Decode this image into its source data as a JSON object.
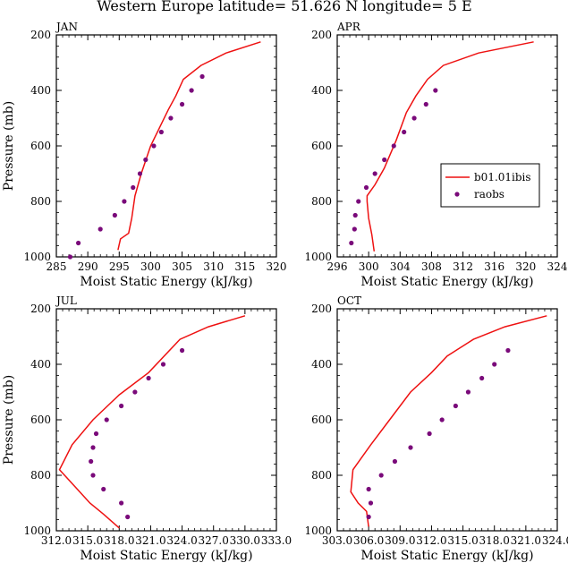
{
  "figure_title": "Western Europe  latitude= 51.626 N longitude= 5 E",
  "colors": {
    "model": "#ee1111",
    "obs": "#7a0a7a",
    "axis": "#000000"
  },
  "legend": {
    "model_label": "b01.01ibis",
    "obs_label": "raobs"
  },
  "chart_data": [
    {
      "type": "line",
      "panel": "JAN",
      "xlabel": "Moist Static Energy (kJ/kg)",
      "ylabel": "Pressure (mb)",
      "xlim": [
        285,
        320
      ],
      "xticks": [
        "285",
        "290",
        "295",
        "300",
        "305",
        "310",
        "315",
        "320"
      ],
      "ylim": [
        1000,
        200
      ],
      "yticks": [
        "200",
        "400",
        "600",
        "800",
        "1000"
      ],
      "series": [
        {
          "name": "b01.01ibis",
          "kind": "line",
          "points": [
            [
              294.8,
              975
            ],
            [
              295.0,
              955
            ],
            [
              295.2,
              935
            ],
            [
              296.5,
              915
            ],
            [
              297.0,
              860
            ],
            [
              297.5,
              780
            ],
            [
              298.5,
              700
            ],
            [
              300.0,
              600
            ],
            [
              301.5,
              530
            ],
            [
              302.8,
              470
            ],
            [
              304.0,
              420
            ],
            [
              305.2,
              360
            ],
            [
              308.0,
              310
            ],
            [
              312.0,
              265
            ],
            [
              317.5,
              225
            ]
          ]
        },
        {
          "name": "raobs",
          "kind": "scatter",
          "points": [
            [
              287.2,
              1000
            ],
            [
              288.5,
              950
            ],
            [
              292.0,
              900
            ],
            [
              294.3,
              850
            ],
            [
              295.8,
              800
            ],
            [
              297.2,
              750
            ],
            [
              298.3,
              700
            ],
            [
              299.2,
              650
            ],
            [
              300.5,
              600
            ],
            [
              301.7,
              550
            ],
            [
              303.2,
              500
            ],
            [
              305.0,
              450
            ],
            [
              306.5,
              400
            ],
            [
              308.2,
              350
            ]
          ]
        }
      ]
    },
    {
      "type": "line",
      "panel": "APR",
      "xlabel": "Moist Static Energy (kJ/kg)",
      "ylabel": "",
      "xlim": [
        296,
        324
      ],
      "xticks": [
        "296",
        "300",
        "304",
        "308",
        "312",
        "316",
        "320",
        "324"
      ],
      "ylim": [
        1000,
        200
      ],
      "yticks": [
        "200",
        "400",
        "600",
        "800",
        "1000"
      ],
      "series": [
        {
          "name": "b01.01ibis",
          "kind": "line",
          "points": [
            [
              300.7,
              980
            ],
            [
              300.4,
              920
            ],
            [
              300.0,
              860
            ],
            [
              299.8,
              800
            ],
            [
              299.8,
              780
            ],
            [
              300.8,
              740
            ],
            [
              302.0,
              680
            ],
            [
              303.5,
              580
            ],
            [
              304.8,
              480
            ],
            [
              306.0,
              420
            ],
            [
              307.5,
              360
            ],
            [
              309.5,
              310
            ],
            [
              314.0,
              265
            ],
            [
              321.0,
              225
            ]
          ]
        },
        {
          "name": "raobs",
          "kind": "scatter",
          "points": [
            [
              297.8,
              950
            ],
            [
              298.2,
              900
            ],
            [
              298.3,
              850
            ],
            [
              298.7,
              800
            ],
            [
              299.7,
              750
            ],
            [
              300.8,
              700
            ],
            [
              302.0,
              650
            ],
            [
              303.2,
              600
            ],
            [
              304.5,
              550
            ],
            [
              305.8,
              500
            ],
            [
              307.3,
              450
            ],
            [
              308.5,
              400
            ]
          ]
        }
      ]
    },
    {
      "type": "line",
      "panel": "JUL",
      "xlabel": "Moist Static Energy (kJ/kg)",
      "ylabel": "Pressure (mb)",
      "xlim": [
        312.0,
        333.0
      ],
      "xticks": [
        "312.0",
        "315.0",
        "318.0",
        "321.0",
        "324.0",
        "327.0",
        "330.0",
        "333.0"
      ],
      "ylim": [
        1000,
        200
      ],
      "yticks": [
        "200",
        "400",
        "600",
        "800",
        "1000"
      ],
      "series": [
        {
          "name": "b01.01ibis",
          "kind": "line",
          "points": [
            [
              318.0,
              990
            ],
            [
              316.5,
              940
            ],
            [
              315.2,
              900
            ],
            [
              314.0,
              850
            ],
            [
              312.3,
              780
            ],
            [
              313.5,
              690
            ],
            [
              315.5,
              600
            ],
            [
              318.0,
              510
            ],
            [
              320.8,
              430
            ],
            [
              323.8,
              310
            ],
            [
              326.5,
              265
            ],
            [
              330.0,
              225
            ]
          ]
        },
        {
          "name": "raobs",
          "kind": "scatter",
          "points": [
            [
              318.8,
              950
            ],
            [
              318.2,
              900
            ],
            [
              316.5,
              850
            ],
            [
              315.5,
              800
            ],
            [
              315.3,
              750
            ],
            [
              315.5,
              700
            ],
            [
              315.8,
              650
            ],
            [
              316.8,
              600
            ],
            [
              318.2,
              550
            ],
            [
              319.5,
              500
            ],
            [
              320.8,
              450
            ],
            [
              322.2,
              400
            ],
            [
              324.0,
              350
            ]
          ]
        }
      ]
    },
    {
      "type": "line",
      "panel": "OCT",
      "xlabel": "Moist Static Energy (kJ/kg)",
      "ylabel": "",
      "xlim": [
        303.0,
        324.0
      ],
      "xticks": [
        "303.0",
        "306.0",
        "309.0",
        "312.0",
        "315.0",
        "318.0",
        "321.0",
        "324.0"
      ],
      "ylim": [
        1000,
        200
      ],
      "yticks": [
        "200",
        "400",
        "600",
        "800",
        "1000"
      ],
      "series": [
        {
          "name": "b01.01ibis",
          "kind": "line",
          "points": [
            [
              306.0,
              985
            ],
            [
              305.8,
              930
            ],
            [
              305.0,
              900
            ],
            [
              304.3,
              860
            ],
            [
              304.5,
              780
            ],
            [
              306.2,
              690
            ],
            [
              308.0,
              600
            ],
            [
              310.0,
              500
            ],
            [
              312.0,
              430
            ],
            [
              313.5,
              370
            ],
            [
              316.0,
              310
            ],
            [
              319.0,
              265
            ],
            [
              323.0,
              225
            ]
          ]
        },
        {
          "name": "raobs",
          "kind": "scatter",
          "points": [
            [
              306.0,
              950
            ],
            [
              306.2,
              900
            ],
            [
              306.0,
              850
            ],
            [
              307.2,
              800
            ],
            [
              308.5,
              750
            ],
            [
              310.0,
              700
            ],
            [
              311.8,
              650
            ],
            [
              313.0,
              600
            ],
            [
              314.3,
              550
            ],
            [
              315.5,
              500
            ],
            [
              316.8,
              450
            ],
            [
              318.0,
              400
            ],
            [
              319.3,
              350
            ]
          ]
        }
      ]
    }
  ]
}
